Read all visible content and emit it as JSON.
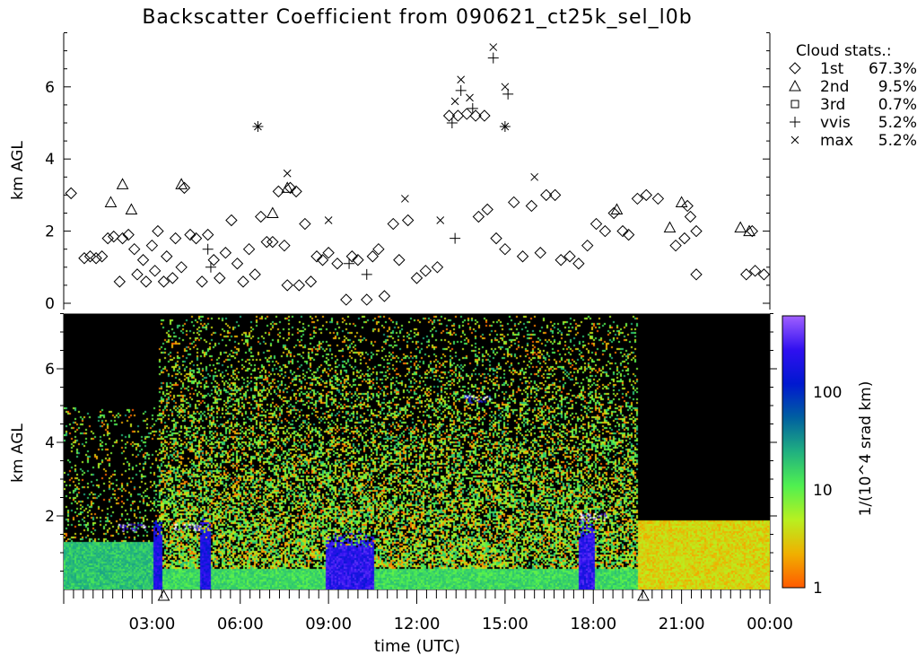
{
  "chart_data": [
    {
      "type": "scatter",
      "title": "Backscatter Coefficient from 090621_ct25k_sel_l0b",
      "ylabel": "km AGL",
      "xlim_hours": [
        0,
        24
      ],
      "ylim": [
        0,
        7.5
      ],
      "yticks": [
        "0",
        "2",
        "4",
        "6"
      ],
      "legend": {
        "title": "Cloud stats.:",
        "placement": "right",
        "entries": [
          {
            "symbol": "diamond",
            "name": "1st",
            "value": "67.3%"
          },
          {
            "symbol": "triangle",
            "name": "2nd",
            "value": "9.5%"
          },
          {
            "symbol": "square",
            "name": "3rd",
            "value": "0.7%"
          },
          {
            "symbol": "plus",
            "name": "vvis",
            "value": "5.2%"
          },
          {
            "symbol": "cross",
            "name": "max",
            "value": "5.2%"
          }
        ]
      },
      "series": [
        {
          "name": "1st",
          "symbol": "diamond",
          "points": [
            [
              0.25,
              3.05
            ],
            [
              0.7,
              1.25
            ],
            [
              0.9,
              1.3
            ],
            [
              1.1,
              1.25
            ],
            [
              1.3,
              1.3
            ],
            [
              1.5,
              1.8
            ],
            [
              1.7,
              1.85
            ],
            [
              1.9,
              0.6
            ],
            [
              2.0,
              1.8
            ],
            [
              2.2,
              1.9
            ],
            [
              2.4,
              1.5
            ],
            [
              2.5,
              0.8
            ],
            [
              2.7,
              1.2
            ],
            [
              2.8,
              0.6
            ],
            [
              3.0,
              1.6
            ],
            [
              3.1,
              0.9
            ],
            [
              3.2,
              2.0
            ],
            [
              3.4,
              0.6
            ],
            [
              3.5,
              1.3
            ],
            [
              3.7,
              0.7
            ],
            [
              3.8,
              1.8
            ],
            [
              4.0,
              1.0
            ],
            [
              4.1,
              3.2
            ],
            [
              4.3,
              1.9
            ],
            [
              4.5,
              1.8
            ],
            [
              4.7,
              0.6
            ],
            [
              4.9,
              1.9
            ],
            [
              5.1,
              1.2
            ],
            [
              5.3,
              0.7
            ],
            [
              5.5,
              1.4
            ],
            [
              5.7,
              2.3
            ],
            [
              5.9,
              1.1
            ],
            [
              6.1,
              0.6
            ],
            [
              6.3,
              1.5
            ],
            [
              6.5,
              0.8
            ],
            [
              6.7,
              2.4
            ],
            [
              6.9,
              1.7
            ],
            [
              7.1,
              1.7
            ],
            [
              7.3,
              3.1
            ],
            [
              7.5,
              1.6
            ],
            [
              7.7,
              3.2
            ],
            [
              7.9,
              3.1
            ],
            [
              7.6,
              0.5
            ],
            [
              8.0,
              0.5
            ],
            [
              8.2,
              2.2
            ],
            [
              8.4,
              0.6
            ],
            [
              8.6,
              1.3
            ],
            [
              8.8,
              1.2
            ],
            [
              9.0,
              1.4
            ],
            [
              9.3,
              1.1
            ],
            [
              9.6,
              0.1
            ],
            [
              9.8,
              1.3
            ],
            [
              10.0,
              1.2
            ],
            [
              10.3,
              0.1
            ],
            [
              10.5,
              1.3
            ],
            [
              10.7,
              1.5
            ],
            [
              10.9,
              0.2
            ],
            [
              11.2,
              2.2
            ],
            [
              11.4,
              1.2
            ],
            [
              11.7,
              2.3
            ],
            [
              12.0,
              0.7
            ],
            [
              12.3,
              0.9
            ],
            [
              12.7,
              1.0
            ],
            [
              13.1,
              5.2
            ],
            [
              13.4,
              5.2
            ],
            [
              13.7,
              5.25
            ],
            [
              14.0,
              5.2
            ],
            [
              14.3,
              5.2
            ],
            [
              14.1,
              2.4
            ],
            [
              14.4,
              2.6
            ],
            [
              14.7,
              1.8
            ],
            [
              15.0,
              1.5
            ],
            [
              15.3,
              2.8
            ],
            [
              15.6,
              1.3
            ],
            [
              15.9,
              2.7
            ],
            [
              16.2,
              1.4
            ],
            [
              16.4,
              3.0
            ],
            [
              16.7,
              3.0
            ],
            [
              16.9,
              1.2
            ],
            [
              17.2,
              1.3
            ],
            [
              17.5,
              1.1
            ],
            [
              17.8,
              1.6
            ],
            [
              18.1,
              2.2
            ],
            [
              18.4,
              2.0
            ],
            [
              18.7,
              2.5
            ],
            [
              19.0,
              2.0
            ],
            [
              19.2,
              1.9
            ],
            [
              19.5,
              2.9
            ],
            [
              19.8,
              3.0
            ],
            [
              20.2,
              2.9
            ],
            [
              20.8,
              1.6
            ],
            [
              21.1,
              1.8
            ],
            [
              21.3,
              2.4
            ],
            [
              21.5,
              2.0
            ],
            [
              21.2,
              2.7
            ],
            [
              21.5,
              0.8
            ],
            [
              23.2,
              0.8
            ],
            [
              23.5,
              0.9
            ],
            [
              23.8,
              0.8
            ],
            [
              23.4,
              2.0
            ]
          ]
        },
        {
          "name": "2nd",
          "symbol": "triangle",
          "points": [
            [
              1.6,
              2.8
            ],
            [
              2.0,
              3.3
            ],
            [
              2.3,
              2.6
            ],
            [
              4.0,
              3.3
            ],
            [
              7.1,
              2.5
            ],
            [
              7.6,
              3.2
            ],
            [
              18.8,
              2.6
            ],
            [
              20.6,
              2.1
            ],
            [
              21.0,
              2.8
            ],
            [
              23.0,
              2.1
            ],
            [
              23.3,
              2.0
            ]
          ]
        },
        {
          "name": "3rd",
          "symbol": "square",
          "points": []
        },
        {
          "name": "vvis",
          "symbol": "plus",
          "points": [
            [
              4.9,
              1.5
            ],
            [
              5.0,
              1.0
            ],
            [
              6.6,
              4.9
            ],
            [
              9.7,
              1.1
            ],
            [
              10.3,
              0.8
            ],
            [
              13.2,
              5.0
            ],
            [
              13.3,
              1.8
            ],
            [
              13.5,
              5.9
            ],
            [
              13.9,
              5.4
            ],
            [
              14.6,
              6.8
            ],
            [
              15.0,
              4.9
            ],
            [
              15.1,
              5.8
            ]
          ]
        },
        {
          "name": "max",
          "symbol": "cross",
          "points": [
            [
              6.6,
              4.9
            ],
            [
              7.6,
              3.6
            ],
            [
              9.0,
              2.3
            ],
            [
              11.6,
              2.9
            ],
            [
              12.8,
              2.3
            ],
            [
              13.3,
              5.6
            ],
            [
              13.5,
              6.2
            ],
            [
              13.8,
              5.7
            ],
            [
              14.6,
              7.1
            ],
            [
              15.0,
              6.0
            ],
            [
              15.0,
              4.9
            ],
            [
              16.0,
              3.5
            ]
          ]
        }
      ]
    },
    {
      "type": "heatmap",
      "ylabel": "km AGL",
      "xlabel": "time (UTC)",
      "xticks": [
        "03:00",
        "06:00",
        "09:00",
        "12:00",
        "15:00",
        "18:00",
        "21:00",
        "00:00"
      ],
      "yticks": [
        "2",
        "4",
        "6"
      ],
      "ylim": [
        0,
        7.5
      ],
      "colorbar": {
        "label": "1/(10^4 srad km)",
        "scale": "log",
        "range": [
          1,
          600
        ],
        "ticks": [
          "1",
          "10",
          "100"
        ],
        "colors": [
          "#ff5a00",
          "#f0b000",
          "#b8f020",
          "#50f050",
          "#20b080",
          "#0060a0",
          "#0018d0",
          "#3010f0",
          "#a060ff"
        ]
      },
      "profiles_hours": [
        {
          "from": 0,
          "to": 3.2,
          "surface_layer_km": 1.3,
          "noise_top_km": 5.0,
          "noise_level": 0.25,
          "peak": 20
        },
        {
          "from": 3.2,
          "to": 19.5,
          "surface_layer_km": 0.6,
          "noise_top_km": 7.5,
          "noise_level": 0.75,
          "peak": 15
        },
        {
          "from": 19.5,
          "to": 24,
          "surface_layer_km": 1.9,
          "noise_top_km": 1.8,
          "noise_level": 0.15,
          "peak": 3
        }
      ],
      "strong_columns": [
        {
          "from": 3.0,
          "to": 3.3,
          "top_km": 2.0,
          "value": 200
        },
        {
          "from": 4.6,
          "to": 5.0,
          "top_km": 2.0,
          "value": 200
        },
        {
          "from": 8.9,
          "to": 10.5,
          "top_km": 1.6,
          "value": 250
        },
        {
          "from": 17.5,
          "to": 18.0,
          "top_km": 2.0,
          "value": 250
        }
      ],
      "cloud_features": [
        {
          "hour": 14.0,
          "km": 5.2,
          "value": 150
        },
        {
          "hour": 2.3,
          "km": 1.7,
          "value": 300
        },
        {
          "hour": 4.2,
          "km": 1.7,
          "value": 300
        },
        {
          "hour": 18.0,
          "km": 2.0,
          "value": 300
        }
      ],
      "markers": [
        {
          "symbol": "triangle",
          "hour": 3.4
        },
        {
          "symbol": "triangle",
          "hour": 19.7
        }
      ]
    }
  ]
}
